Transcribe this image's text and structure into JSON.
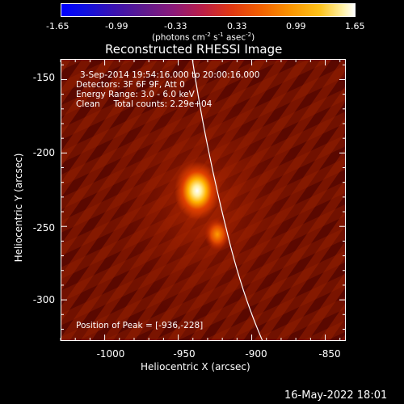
{
  "colorbar": {
    "ticks": [
      "-1.65",
      "-0.99",
      "-0.33",
      "0.33",
      "0.99",
      "1.65"
    ],
    "units_label": "(photons cm",
    "units_exp1": "-2",
    "units_mid1": " s",
    "units_exp2": "-1",
    "units_mid2": " asec",
    "units_exp3": "-2",
    "units_end": ")",
    "min": -1.65,
    "max": 1.65
  },
  "title": "Reconstructed RHESSI Image",
  "info": {
    "time_range": "3-Sep-2014 19:54:16.000 to 20:00:16.000",
    "detectors": "Detectors: 3F 6F 9F, Att 0",
    "energy": "Energy Range: 3.0 - 6.0 keV",
    "clean": "Clean     Total counts: 2.29e+04",
    "peak": "Position of Peak = [-936,-228]"
  },
  "axes": {
    "xlabel": "Heliocentric X (arcsec)",
    "ylabel": "Heliocentric Y (arcsec)",
    "xticks": [
      "-1000",
      "-950",
      "-900",
      "-850"
    ],
    "yticks": [
      "-150",
      "-200",
      "-250",
      "-300"
    ],
    "xlim": [
      -1030,
      -836
    ],
    "ylim": [
      -328,
      -136
    ]
  },
  "peak_position": {
    "x": -936,
    "y": -228
  },
  "footer": "16-May-2022 18:01"
}
